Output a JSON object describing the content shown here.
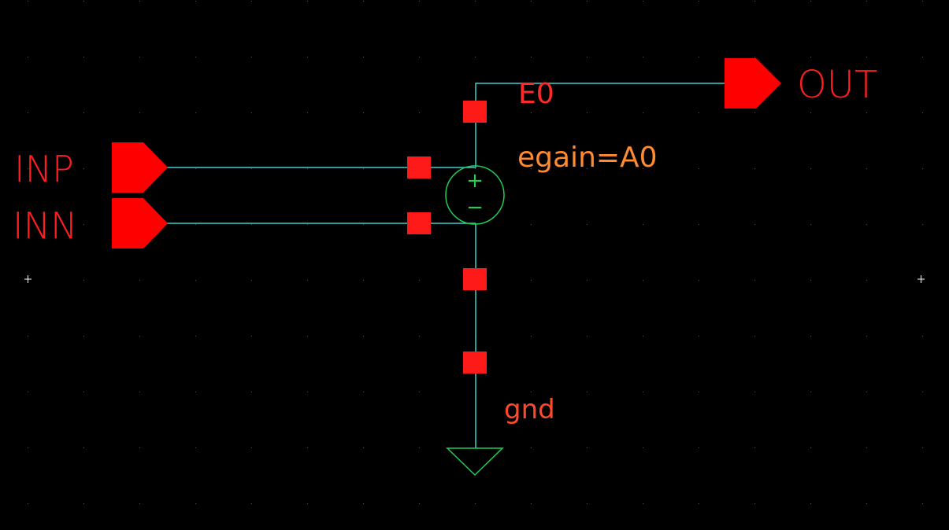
{
  "schematic": {
    "pins": {
      "inp": "INP",
      "inn": "INN",
      "out": "OUT"
    },
    "instance_name": "E0",
    "instance_param": "egain=A0",
    "ground_label": "gnd",
    "source_polarity": {
      "plus": "+",
      "minus": "−"
    }
  },
  "colors": {
    "background": "#000000",
    "wire": "#3fcfcf",
    "pin": "#ff0000",
    "label": "#ff2a2a",
    "param_label": "#ff8a30",
    "symbol": "#22cc55",
    "grid_dot": "#555555"
  },
  "icons": {
    "pin": "pentagon-pin-icon",
    "terminal": "square-terminal-icon",
    "source": "vcvs-source-icon",
    "ground": "ground-triangle-icon"
  }
}
